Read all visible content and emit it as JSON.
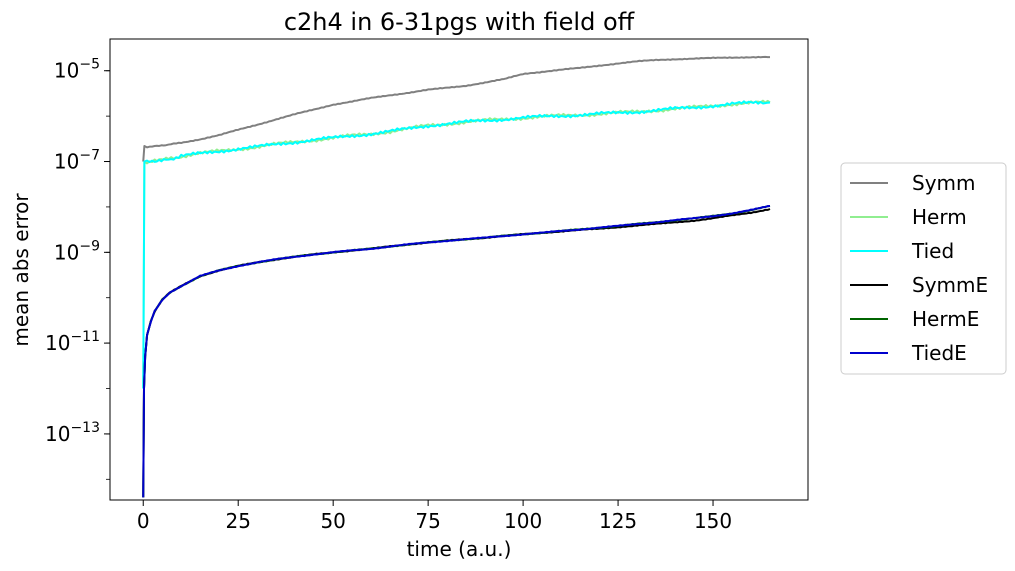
{
  "chart_data": {
    "type": "line",
    "title": "c2h4 in 6-31pgs with field off",
    "xlabel": "time (a.u.)",
    "ylabel": "mean abs error",
    "xlim": [
      -8.75,
      175
    ],
    "ylim": [
      3.5e-15,
      5e-05
    ],
    "yscale": "log",
    "xticks": [
      0,
      25,
      50,
      75,
      100,
      125,
      150
    ],
    "yticks": [
      {
        "value": 1e-13,
        "base": "10",
        "exp": "−13"
      },
      {
        "value": 1e-11,
        "base": "10",
        "exp": "−11"
      },
      {
        "value": 1e-09,
        "base": "10",
        "exp": "−9"
      },
      {
        "value": 1e-07,
        "base": "10",
        "exp": "−7"
      },
      {
        "value": 1e-05,
        "base": "10",
        "exp": "−5"
      }
    ],
    "grid": false,
    "legend_position": "outside-right",
    "series": [
      {
        "name": "Symm",
        "color": "#808080",
        "x": [
          0,
          0.3,
          1,
          3,
          6,
          10,
          15,
          20,
          25,
          30,
          35,
          40,
          45,
          50,
          55,
          60,
          65,
          70,
          75,
          80,
          85,
          90,
          95,
          100,
          103,
          105,
          110,
          115,
          120,
          125,
          130,
          135,
          140,
          145,
          150,
          155,
          160,
          165
        ],
        "y": [
          1e-07,
          2.2e-07,
          2.1e-07,
          2.2e-07,
          2.3e-07,
          2.6e-07,
          3.1e-07,
          3.8e-07,
          5e-07,
          6.5e-07,
          8.5e-07,
          1.1e-06,
          1.4e-06,
          1.8e-06,
          2.1e-06,
          2.5e-06,
          2.9e-06,
          3.3e-06,
          3.8e-06,
          4.2e-06,
          4.7e-06,
          5.5e-06,
          6.5e-06,
          8.5e-06,
          9e-06,
          9.5e-06,
          1.05e-05,
          1.15e-05,
          1.3e-05,
          1.45e-05,
          1.6e-05,
          1.72e-05,
          1.8e-05,
          1.85e-05,
          1.9e-05,
          1.95e-05,
          2e-05,
          2e-05
        ]
      },
      {
        "name": "Herm",
        "color": "#90ee90",
        "x": [
          0,
          0.3,
          1,
          3,
          6,
          10,
          15,
          20,
          25,
          30,
          35,
          40,
          45,
          50,
          55,
          60,
          65,
          70,
          75,
          80,
          85,
          90,
          95,
          100,
          105,
          110,
          115,
          120,
          125,
          130,
          135,
          140,
          145,
          150,
          155,
          160,
          165
        ],
        "y": [
          1e-12,
          1e-07,
          9.5e-08,
          1e-07,
          1.1e-07,
          1.3e-07,
          1.5e-07,
          1.7e-07,
          1.9e-07,
          2.1e-07,
          2.4e-07,
          2.7e-07,
          3e-07,
          3.3e-07,
          3.7e-07,
          4.1e-07,
          4.6e-07,
          5.3e-07,
          6.2e-07,
          6.8e-07,
          7.4e-07,
          8e-07,
          8.6e-07,
          9.2e-07,
          9.7e-07,
          1.02e-06,
          1.07e-06,
          1.12e-06,
          1.18e-06,
          1.25e-06,
          1.35e-06,
          1.45e-06,
          1.55e-06,
          1.7e-06,
          1.85e-06,
          1.95e-06,
          2e-06
        ]
      },
      {
        "name": "Tied",
        "color": "#00ffff",
        "x": [
          0,
          0.3,
          1,
          3,
          6,
          10,
          15,
          20,
          25,
          30,
          35,
          40,
          45,
          50,
          55,
          60,
          65,
          70,
          75,
          80,
          85,
          90,
          95,
          100,
          105,
          110,
          115,
          120,
          125,
          130,
          135,
          140,
          145,
          150,
          155,
          160,
          165
        ],
        "y": [
          1e-12,
          1e-07,
          9.5e-08,
          1e-07,
          1.1e-07,
          1.3e-07,
          1.5e-07,
          1.7e-07,
          1.9e-07,
          2.1e-07,
          2.4e-07,
          2.7e-07,
          3e-07,
          3.3e-07,
          3.7e-07,
          4.1e-07,
          4.6e-07,
          5.3e-07,
          6.2e-07,
          6.8e-07,
          7.4e-07,
          8e-07,
          8.6e-07,
          9.2e-07,
          9.7e-07,
          1.02e-06,
          1.07e-06,
          1.12e-06,
          1.18e-06,
          1.25e-06,
          1.35e-06,
          1.45e-06,
          1.55e-06,
          1.7e-06,
          1.85e-06,
          1.95e-06,
          2e-06
        ]
      },
      {
        "name": "SymmE",
        "color": "#000000",
        "x": [
          0,
          0.2,
          0.5,
          1,
          2,
          3,
          5,
          7,
          10,
          15,
          20,
          25,
          30,
          35,
          40,
          45,
          50,
          55,
          60,
          65,
          70,
          75,
          80,
          85,
          90,
          95,
          100,
          105,
          110,
          115,
          120,
          125,
          130,
          135,
          140,
          145,
          150,
          155,
          160,
          165
        ],
        "y": [
          4e-15,
          1e-12,
          5e-12,
          1.5e-11,
          3e-11,
          5e-11,
          9e-11,
          1.3e-10,
          1.8e-10,
          3e-10,
          4e-10,
          5e-10,
          6e-10,
          7e-10,
          8e-10,
          9e-10,
          1e-09,
          1.1e-09,
          1.2e-09,
          1.35e-09,
          1.5e-09,
          1.65e-09,
          1.8e-09,
          1.95e-09,
          2.1e-09,
          2.3e-09,
          2.5e-09,
          2.7e-09,
          2.9e-09,
          3.1e-09,
          3.3e-09,
          3.6e-09,
          3.9e-09,
          4.2e-09,
          4.6e-09,
          5e-09,
          5.6e-09,
          6.5e-09,
          7.5e-09,
          9e-09
        ]
      },
      {
        "name": "HermE",
        "color": "#006400",
        "x": [
          0,
          0.2,
          0.5,
          1,
          2,
          3,
          5,
          7,
          10,
          15,
          20,
          25,
          30,
          35,
          40,
          45,
          50,
          55,
          60,
          65,
          70,
          75,
          80,
          85,
          90,
          95,
          100,
          105,
          110,
          115,
          120,
          125,
          130,
          135,
          140,
          145,
          150,
          155,
          160,
          165
        ],
        "y": [
          4e-15,
          1e-12,
          5e-12,
          1.5e-11,
          3e-11,
          5e-11,
          9e-11,
          1.3e-10,
          1.8e-10,
          3e-10,
          4e-10,
          5e-10,
          6e-10,
          7e-10,
          8e-10,
          9e-10,
          1e-09,
          1.1e-09,
          1.2e-09,
          1.35e-09,
          1.5e-09,
          1.65e-09,
          1.8e-09,
          1.95e-09,
          2.1e-09,
          2.3e-09,
          2.5e-09,
          2.7e-09,
          2.95e-09,
          3.2e-09,
          3.5e-09,
          3.8e-09,
          4.2e-09,
          4.6e-09,
          5.1e-09,
          5.6e-09,
          6.3e-09,
          7.2e-09,
          8.5e-09,
          1.05e-08
        ]
      },
      {
        "name": "TiedE",
        "color": "#0000cd",
        "x": [
          0,
          0.2,
          0.5,
          1,
          2,
          3,
          5,
          7,
          10,
          15,
          20,
          25,
          30,
          35,
          40,
          45,
          50,
          55,
          60,
          65,
          70,
          75,
          80,
          85,
          90,
          95,
          100,
          105,
          110,
          115,
          120,
          125,
          130,
          135,
          140,
          145,
          150,
          155,
          160,
          165
        ],
        "y": [
          4e-15,
          1e-12,
          5e-12,
          1.5e-11,
          3e-11,
          5e-11,
          9e-11,
          1.3e-10,
          1.8e-10,
          3e-10,
          4e-10,
          5e-10,
          6e-10,
          7e-10,
          8e-10,
          9e-10,
          1e-09,
          1.1e-09,
          1.2e-09,
          1.35e-09,
          1.5e-09,
          1.65e-09,
          1.8e-09,
          1.95e-09,
          2.1e-09,
          2.3e-09,
          2.5e-09,
          2.7e-09,
          2.95e-09,
          3.2e-09,
          3.5e-09,
          3.8e-09,
          4.2e-09,
          4.6e-09,
          5.1e-09,
          5.6e-09,
          6.3e-09,
          7.2e-09,
          8.5e-09,
          1.05e-08
        ]
      }
    ]
  }
}
